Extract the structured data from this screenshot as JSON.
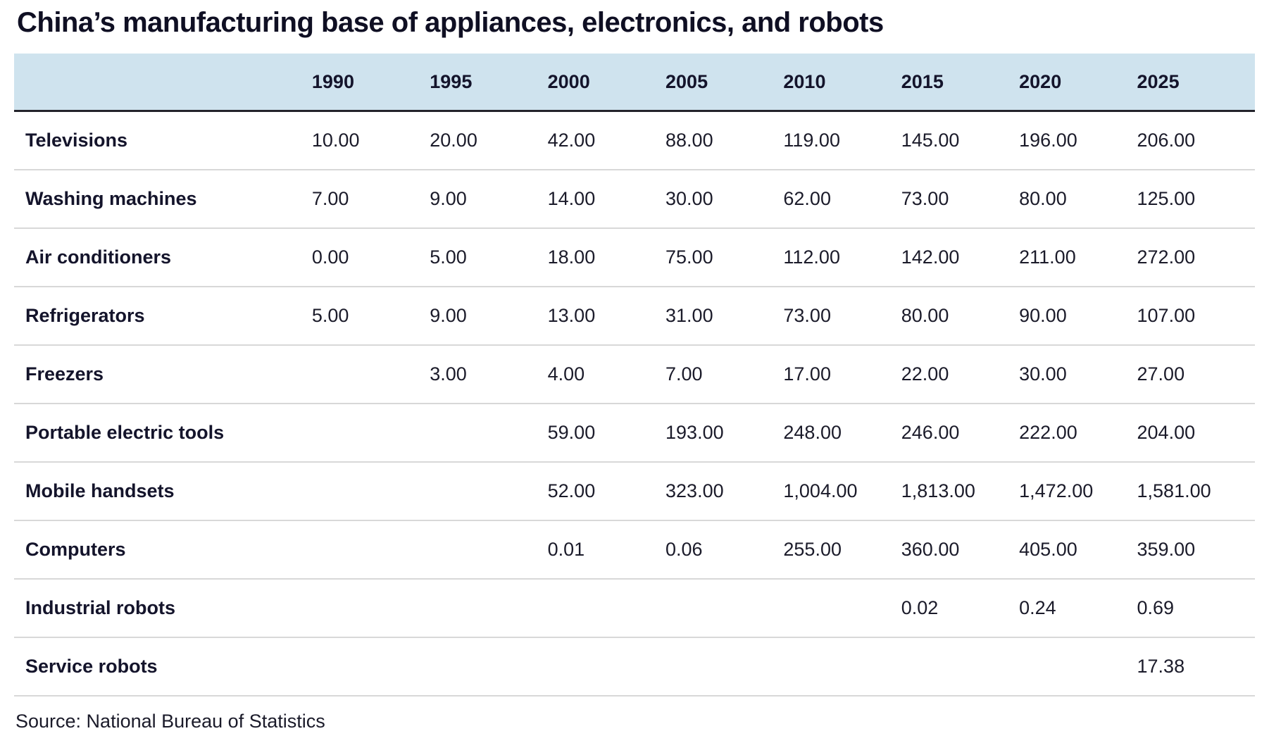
{
  "title": "China’s manufacturing base of appliances, electronics, and robots",
  "source": "Source: National Bureau of Statistics",
  "colors": {
    "header_bg": "#cfe3ee",
    "header_border": "#23232b",
    "row_border": "#d8d8d8",
    "title_text": "#0f0f23",
    "body_text": "#1b1b2a"
  },
  "chart_data": {
    "type": "table",
    "title": "China’s manufacturing base of appliances, electronics, and robots",
    "columns": [
      "1990",
      "1995",
      "2000",
      "2005",
      "2010",
      "2015",
      "2020",
      "2025"
    ],
    "rows": [
      {
        "label": "Televisions",
        "values": [
          "10.00",
          "20.00",
          "42.00",
          "88.00",
          "119.00",
          "145.00",
          "196.00",
          "206.00"
        ]
      },
      {
        "label": "Washing machines",
        "values": [
          "7.00",
          "9.00",
          "14.00",
          "30.00",
          "62.00",
          "73.00",
          "80.00",
          "125.00"
        ]
      },
      {
        "label": "Air conditioners",
        "values": [
          "0.00",
          "5.00",
          "18.00",
          "75.00",
          "112.00",
          "142.00",
          "211.00",
          "272.00"
        ]
      },
      {
        "label": "Refrigerators",
        "values": [
          "5.00",
          "9.00",
          "13.00",
          "31.00",
          "73.00",
          "80.00",
          "90.00",
          "107.00"
        ]
      },
      {
        "label": "Freezers",
        "values": [
          "",
          "3.00",
          "4.00",
          "7.00",
          "17.00",
          "22.00",
          "30.00",
          "27.00"
        ]
      },
      {
        "label": "Portable electric tools",
        "values": [
          "",
          "",
          "59.00",
          "193.00",
          "248.00",
          "246.00",
          "222.00",
          "204.00"
        ]
      },
      {
        "label": "Mobile handsets",
        "values": [
          "",
          "",
          "52.00",
          "323.00",
          "1,004.00",
          "1,813.00",
          "1,472.00",
          "1,581.00"
        ]
      },
      {
        "label": "Computers",
        "values": [
          "",
          "",
          "0.01",
          "0.06",
          "255.00",
          "360.00",
          "405.00",
          "359.00"
        ]
      },
      {
        "label": "Industrial robots",
        "values": [
          "",
          "",
          "",
          "",
          "",
          "0.02",
          "0.24",
          "0.69"
        ]
      },
      {
        "label": "Service robots",
        "values": [
          "",
          "",
          "",
          "",
          "",
          "",
          "",
          "17.38"
        ]
      }
    ],
    "source_note": "Source: National Bureau of Statistics"
  }
}
